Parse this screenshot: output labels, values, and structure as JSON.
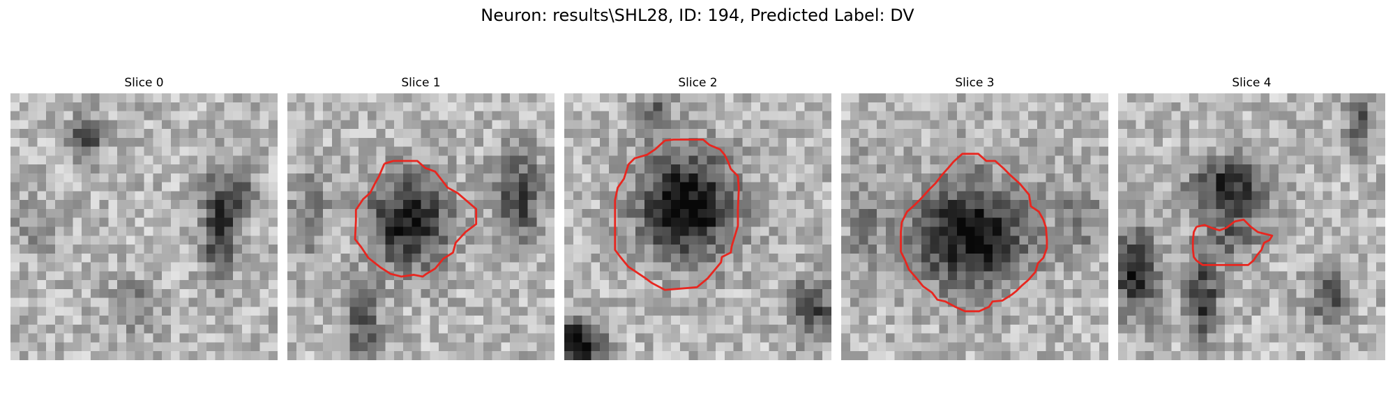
{
  "figure": {
    "title": "Neuron: results\\SHL28, ID: 194, Predicted Label: DV"
  },
  "contour_color": "#e8261f",
  "panels": [
    {
      "title": "Slice 0",
      "has_contour": false
    },
    {
      "title": "Slice 1",
      "has_contour": true
    },
    {
      "title": "Slice 2",
      "has_contour": true
    },
    {
      "title": "Slice 3",
      "has_contour": true
    },
    {
      "title": "Slice 4",
      "has_contour": true
    }
  ]
}
